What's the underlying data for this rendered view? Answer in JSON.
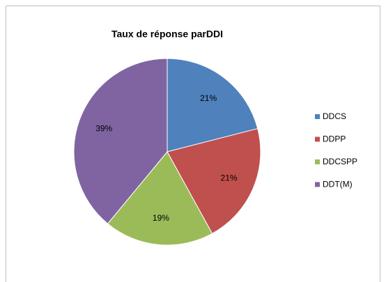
{
  "chart_data": {
    "type": "pie",
    "title": "Taux de réponse parDDI",
    "categories": [
      "DDCS",
      "DDPP",
      "DDCSPP",
      "DDT(M)"
    ],
    "values": [
      21,
      21,
      19,
      39
    ],
    "value_labels": [
      "21%",
      "21%",
      "19%",
      "39%"
    ],
    "colors": [
      "#4f81bd",
      "#c0504d",
      "#9bbb59",
      "#8064a2"
    ],
    "legend": "right"
  }
}
